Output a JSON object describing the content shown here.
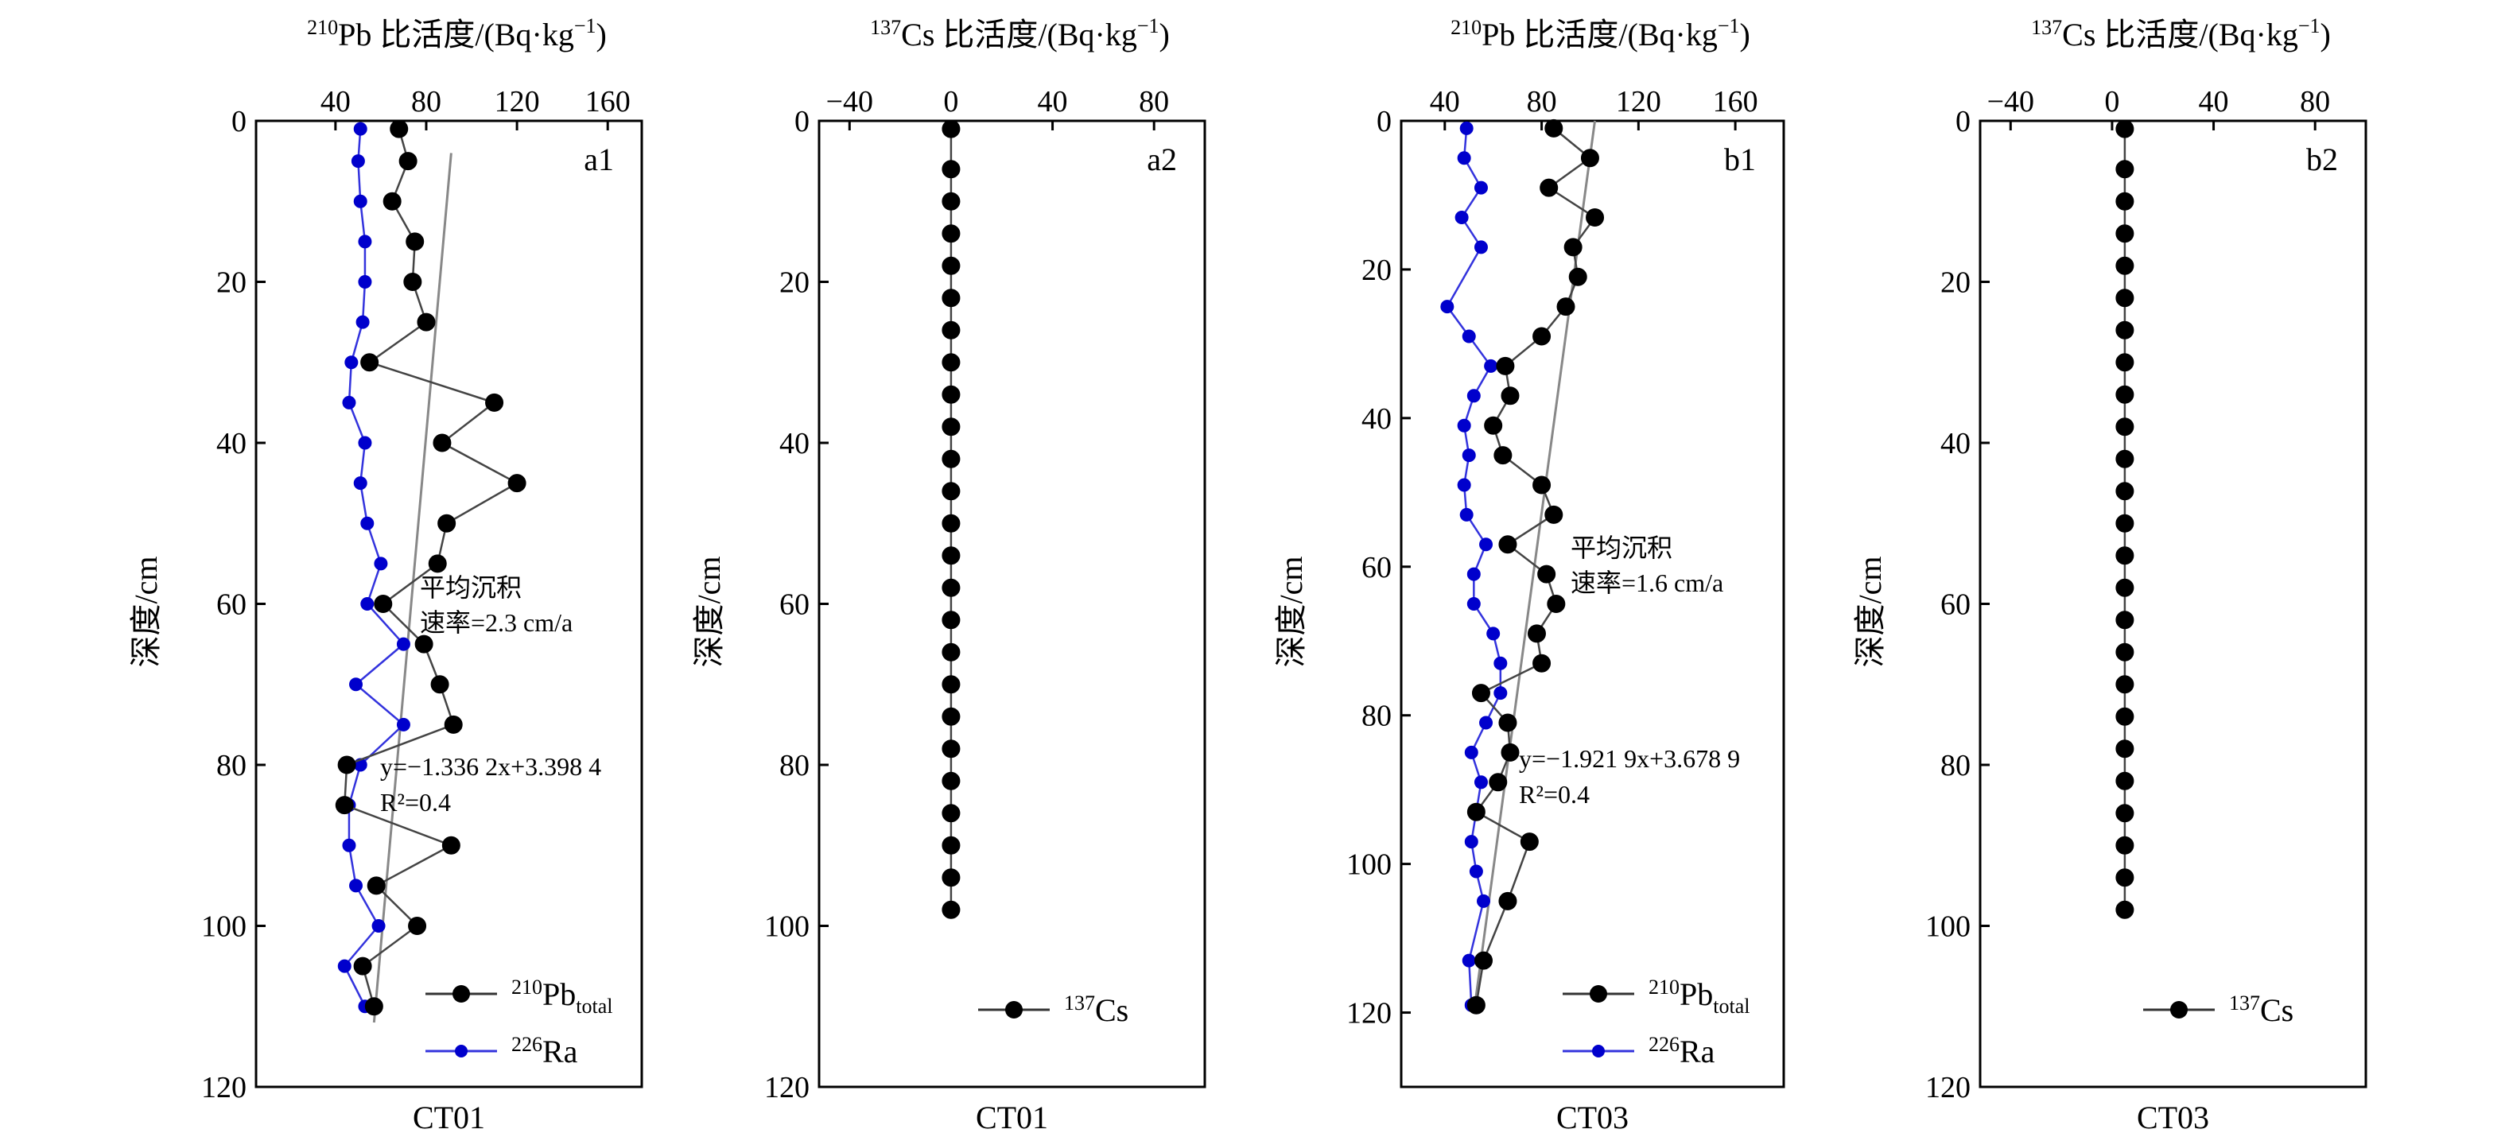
{
  "chart_data": [
    {
      "type": "scatter",
      "panel_label": "a1",
      "site": "CT01",
      "top_axis": {
        "isotope": "210",
        "element": "Pb",
        "title": "比活度/(Bq·kg",
        "title_sup": "−1",
        "ticks": [
          "40",
          "80",
          "120",
          "160"
        ],
        "range": [
          5,
          175
        ]
      },
      "ylabel": "深度/cm",
      "y_ticks": [
        "0",
        "20",
        "40",
        "60",
        "80",
        "100",
        "120"
      ],
      "ylim": [
        0,
        120
      ],
      "series": [
        {
          "name_main": "Pb",
          "name_sup": "210",
          "name_sub": "total",
          "color": "#000000",
          "x": [
            68,
            72,
            65,
            75,
            74,
            80,
            55,
            110,
            87,
            120,
            89,
            85,
            61,
            79,
            86,
            92,
            45,
            44,
            91,
            58,
            76,
            52,
            57
          ],
          "y": [
            1,
            5,
            10,
            15,
            20,
            25,
            30,
            35,
            40,
            45,
            50,
            55,
            60,
            65,
            70,
            75,
            80,
            85,
            90,
            95,
            100,
            105,
            110
          ]
        },
        {
          "name_main": "Ra",
          "name_sup": "226",
          "name_sub": "",
          "color": "#0000cc",
          "x": [
            51,
            50,
            51,
            53,
            53,
            52,
            47,
            46,
            53,
            51,
            54,
            60,
            54,
            70,
            49,
            70,
            51,
            46,
            46,
            49,
            59,
            44,
            53
          ],
          "y": [
            1,
            5,
            10,
            15,
            20,
            25,
            30,
            35,
            40,
            45,
            50,
            55,
            60,
            65,
            70,
            75,
            80,
            85,
            90,
            95,
            100,
            105,
            110
          ]
        }
      ],
      "fit_line": {
        "x_top": 91,
        "y_top": 4,
        "x_bottom": 57,
        "y_bottom": 112,
        "equation": "y=−1.336 2x+3.398 4",
        "r2": "R²=0.4"
      },
      "annotation_lines": [
        "平均沉积",
        "速率=2.3 cm/a"
      ]
    },
    {
      "type": "scatter",
      "panel_label": "a2",
      "site": "CT01",
      "top_axis": {
        "isotope": "137",
        "element": "Cs",
        "title": "比活度/(Bq·kg",
        "title_sup": "−1",
        "ticks": [
          "−40",
          "0",
          "40",
          "80"
        ],
        "range": [
          -52,
          100
        ]
      },
      "ylabel": "深度/cm",
      "y_ticks": [
        "0",
        "20",
        "40",
        "60",
        "80",
        "100",
        "120"
      ],
      "ylim": [
        0,
        120
      ],
      "series": [
        {
          "name_main": "Cs",
          "name_sup": "137",
          "name_sub": "",
          "color": "#000000",
          "x": [
            0,
            0,
            0,
            0,
            0,
            0,
            0,
            0,
            0,
            0,
            0,
            0,
            0,
            0,
            0,
            0,
            0,
            0,
            0,
            0,
            0,
            0,
            0,
            0,
            0
          ],
          "y": [
            1,
            6,
            10,
            14,
            18,
            22,
            26,
            30,
            34,
            38,
            42,
            46,
            50,
            54,
            58,
            62,
            66,
            70,
            74,
            78,
            82,
            86,
            90,
            94,
            98
          ]
        }
      ]
    },
    {
      "type": "scatter",
      "panel_label": "b1",
      "site": "CT03",
      "top_axis": {
        "isotope": "210",
        "element": "Pb",
        "title": "比活度/(Bq·kg",
        "title_sup": "−1",
        "ticks": [
          "40",
          "80",
          "120",
          "160"
        ],
        "range": [
          22,
          180
        ]
      },
      "ylabel": "深度/cm",
      "y_ticks": [
        "0",
        "20",
        "40",
        "60",
        "80",
        "100",
        "120"
      ],
      "ylim": [
        0,
        130
      ],
      "series": [
        {
          "name_main": "Pb",
          "name_sup": "210",
          "name_sub": "total",
          "color": "#000000",
          "x": [
            85,
            100,
            83,
            102,
            93,
            95,
            90,
            80,
            65,
            67,
            60,
            64,
            80,
            85,
            66,
            82,
            86,
            78,
            80,
            55,
            66,
            67,
            62,
            53,
            75,
            66,
            56,
            53
          ],
          "y": [
            1,
            5,
            9,
            13,
            17,
            21,
            25,
            29,
            33,
            37,
            41,
            45,
            49,
            53,
            57,
            61,
            65,
            69,
            73,
            77,
            81,
            85,
            89,
            93,
            97,
            105,
            113,
            119
          ]
        },
        {
          "name_main": "Ra",
          "name_sup": "226",
          "name_sub": "",
          "color": "#0000cc",
          "x": [
            49,
            48,
            55,
            47,
            55,
            41,
            50,
            59,
            52,
            48,
            50,
            48,
            49,
            57,
            52,
            52,
            60,
            63,
            63,
            57,
            51,
            55,
            53,
            51,
            53,
            56,
            50,
            51
          ],
          "y": [
            1,
            5,
            9,
            13,
            17,
            25,
            29,
            33,
            37,
            41,
            45,
            49,
            53,
            57,
            61,
            65,
            69,
            73,
            77,
            81,
            85,
            89,
            93,
            97,
            101,
            105,
            113,
            119
          ]
        }
      ],
      "fit_line": {
        "x_top": 102,
        "y_top": 0,
        "x_bottom": 52,
        "y_bottom": 120,
        "equation": "y=−1.921 9x+3.678 9",
        "r2": "R²=0.4"
      },
      "annotation_lines": [
        "平均沉积",
        "速率=1.6 cm/a"
      ]
    },
    {
      "type": "scatter",
      "panel_label": "b2",
      "site": "CT03",
      "top_axis": {
        "isotope": "137",
        "element": "Cs",
        "title": "比活度/(Bq·kg",
        "title_sup": "−1",
        "ticks": [
          "−40",
          "0",
          "40",
          "80"
        ],
        "range": [
          -52,
          100
        ]
      },
      "ylabel": "深度/cm",
      "y_ticks": [
        "0",
        "20",
        "40",
        "60",
        "80",
        "100",
        "120"
      ],
      "ylim": [
        0,
        120
      ],
      "series": [
        {
          "name_main": "Cs",
          "name_sup": "137",
          "name_sub": "",
          "color": "#000000",
          "x": [
            5,
            5,
            5,
            5,
            5,
            5,
            5,
            5,
            5,
            5,
            5,
            5,
            5,
            5,
            5,
            5,
            5,
            5,
            5,
            5,
            5,
            5,
            5,
            5,
            5
          ],
          "y": [
            1,
            6,
            10,
            14,
            18,
            22,
            26,
            30,
            34,
            38,
            42,
            46,
            50,
            54,
            58,
            62,
            66,
            70,
            74,
            78,
            82,
            86,
            90,
            94,
            98
          ]
        }
      ]
    }
  ]
}
